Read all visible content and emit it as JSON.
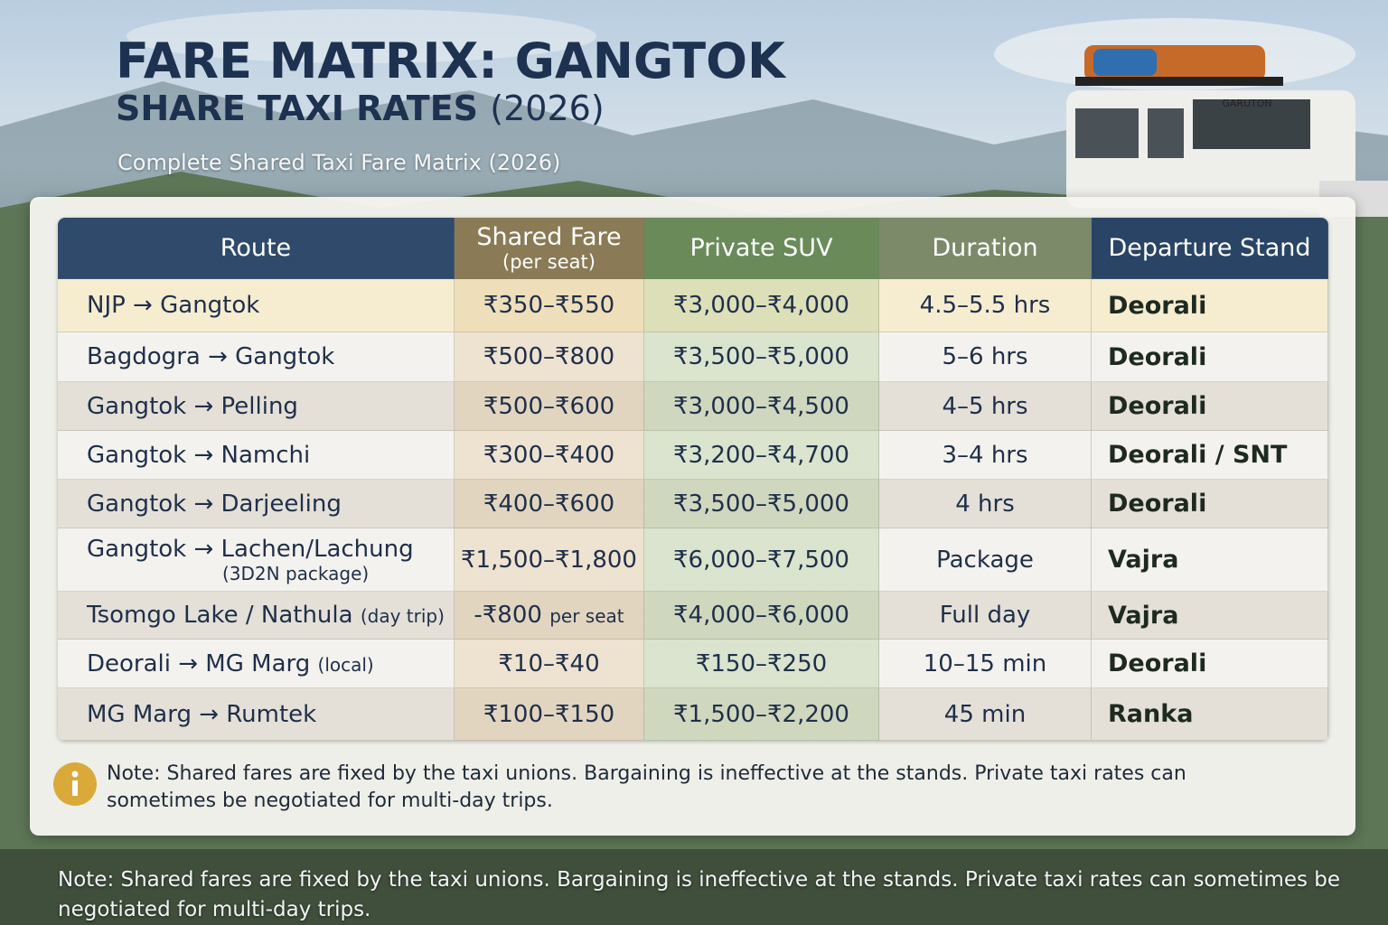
{
  "header": {
    "title": "FARE MATRIX: GANGTOK",
    "subtitle_main": "SHARE TAXI RATES",
    "subtitle_year": "(2026)",
    "tagline": "Complete Shared Taxi Fare Matrix (2026)"
  },
  "vehicle_label": "GARUTON",
  "table": {
    "columns": [
      {
        "label": "Route"
      },
      {
        "label": "Shared Fare",
        "sublabel": "(per seat)"
      },
      {
        "label": "Private SUV"
      },
      {
        "label": "Duration"
      },
      {
        "label": "Departure Stand"
      }
    ],
    "rows": [
      {
        "route": "NJP → Gangtok",
        "shared": "₹350–₹550",
        "suv": "₹3,000–₹4,000",
        "duration": "4.5–5.5 hrs",
        "stand": "Deorali"
      },
      {
        "route": "Bagdogra → Gangtok",
        "shared": "₹500–₹800",
        "suv": "₹3,500–₹5,000",
        "duration": "5–6 hrs",
        "stand": "Deorali"
      },
      {
        "route": "Gangtok → Pelling",
        "shared": "₹500–₹600",
        "suv": "₹3,000–₹4,500",
        "duration": "4–5 hrs",
        "stand": "Deorali"
      },
      {
        "route": "Gangtok → Namchi",
        "shared": "₹300–₹400",
        "suv": "₹3,200–₹4,700",
        "duration": "3–4 hrs",
        "stand": "Deorali / SNT"
      },
      {
        "route": "Gangtok → Darjeeling",
        "shared": "₹400–₹600",
        "suv": "₹3,500–₹5,000",
        "duration": "4 hrs",
        "stand": "Deorali"
      },
      {
        "route": "Gangtok → Lachen/Lachung",
        "route_note": "(3D2N package)",
        "shared": "₹1,500–₹1,800",
        "suv": "₹6,000–₹7,500",
        "duration": "Package",
        "stand": "Vajra"
      },
      {
        "route": "Tsomgo Lake / Nathula",
        "route_inline_note": "(day trip)",
        "shared": "-₹800",
        "shared_note": "per seat",
        "suv": "₹4,000–₹6,000",
        "duration": "Full day",
        "stand": "Vajra"
      },
      {
        "route": "Deorali → MG Marg",
        "route_inline_note": "(local)",
        "shared": "₹10–₹40",
        "suv": "₹150–₹250",
        "duration": "10–15 min",
        "stand": "Deorali"
      },
      {
        "route": "MG Marg → Rumtek",
        "shared": "₹100–₹150",
        "suv": "₹1,500–₹2,200",
        "duration": "45 min",
        "stand": "Ranka"
      }
    ]
  },
  "note": "Note: Shared fares are fixed by the taxi unions. Bargaining is ineffective at the stands. Private taxi rates can sometimes be negotiated for multi-day trips.",
  "footer_note": "Note: Shared fares are fixed by the taxi unions. Bargaining is ineffective at the stands. Private taxi rates can sometimes be negotiated for multi-day trips."
}
